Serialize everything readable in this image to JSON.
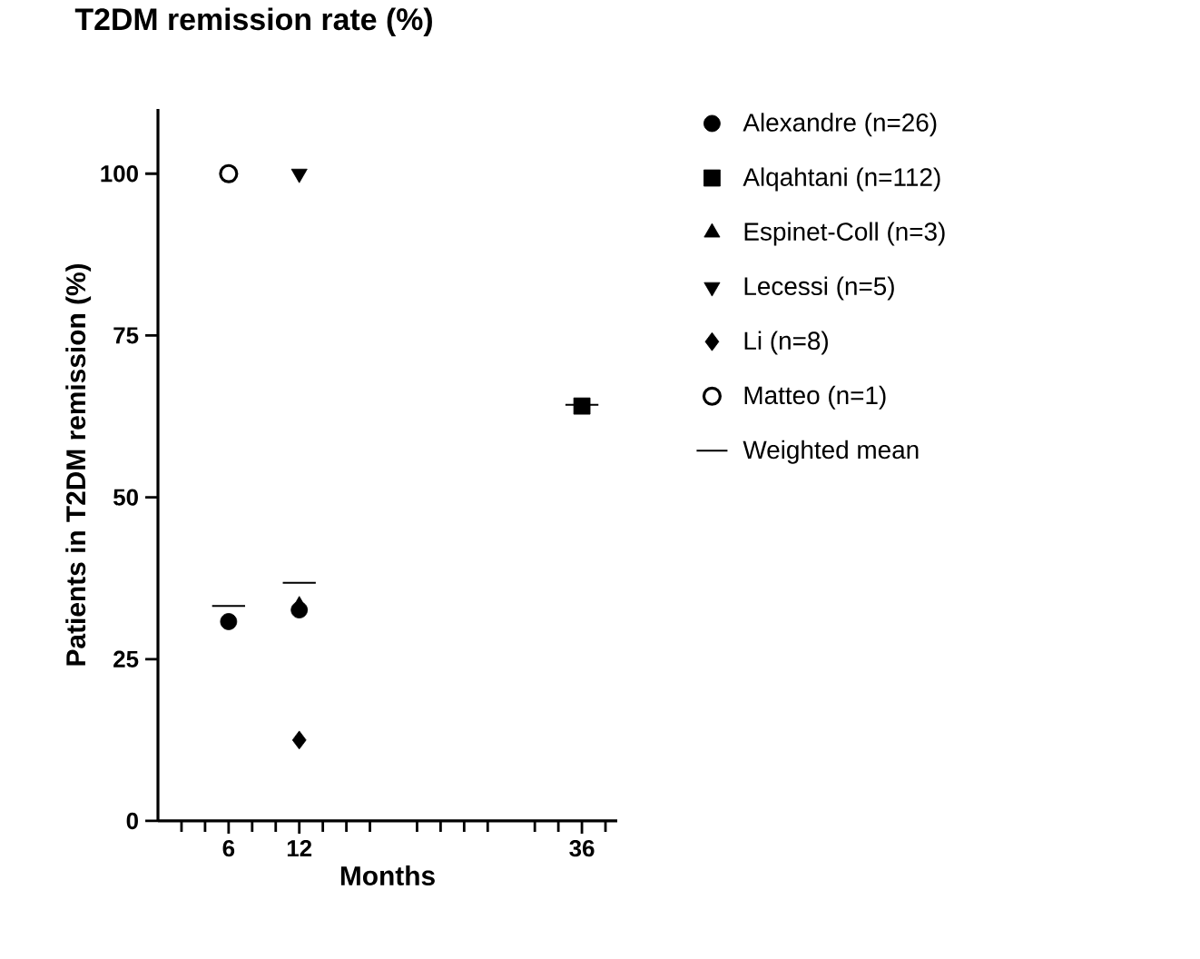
{
  "chart_data": {
    "type": "scatter",
    "title": "T2DM remission rate  (%)",
    "xlabel": "Months",
    "ylabel": "Patients in T2DM remission  (%)",
    "xlim": [
      0,
      39
    ],
    "ylim": [
      0,
      110
    ],
    "xticks": [
      {
        "value": 2,
        "label": null
      },
      {
        "value": 4,
        "label": null
      },
      6,
      {
        "value": 8,
        "label": null
      },
      {
        "value": 10,
        "label": null
      },
      12,
      {
        "value": 14,
        "label": null
      },
      {
        "value": 16,
        "label": null
      },
      {
        "value": 18,
        "label": null
      },
      {
        "value": 22,
        "label": null
      },
      {
        "value": 24,
        "label": null
      },
      {
        "value": 26,
        "label": null
      },
      {
        "value": 28,
        "label": null
      },
      {
        "value": 32,
        "label": null
      },
      {
        "value": 34,
        "label": null
      },
      36,
      {
        "value": 38,
        "label": null
      }
    ],
    "yticks": [
      0,
      25,
      50,
      75,
      100
    ],
    "legend": "right",
    "grid": false,
    "series": [
      {
        "name": "Alexandre (n=26)",
        "color": "#000000",
        "marker": "circle",
        "x": [
          6,
          12
        ],
        "values": [
          30.8,
          32.6
        ]
      },
      {
        "name": "Alqahtani (n=112)",
        "color": "#000000",
        "marker": "square",
        "x": [
          36
        ],
        "values": [
          64.1
        ]
      },
      {
        "name": "Espinet-Coll (n=3)",
        "color": "#000000",
        "marker": "triangle",
        "x": [
          12
        ],
        "values": [
          33.3
        ]
      },
      {
        "name": "Lecessi (n=5)",
        "color": "#000000",
        "marker": "triangle-down",
        "x": [
          12
        ],
        "values": [
          100
        ]
      },
      {
        "name": "Li (n=8)",
        "color": "#000000",
        "marker": "diamond",
        "x": [
          12
        ],
        "values": [
          12.5
        ]
      },
      {
        "name": "Matteo (n=1)",
        "color": "#000000",
        "marker": "circle-open",
        "x": [
          6
        ],
        "values": [
          100
        ]
      },
      {
        "name": "Weighted mean",
        "type": "line",
        "color": "#000000",
        "marker": "none",
        "x": [
          4.6,
          7.4,
          9,
          10.6,
          13.4,
          24,
          34.6,
          37.4
        ],
        "values": [
          33.2,
          33.2,
          null,
          36.8,
          36.8,
          null,
          64.3,
          64.3
        ]
      }
    ]
  }
}
